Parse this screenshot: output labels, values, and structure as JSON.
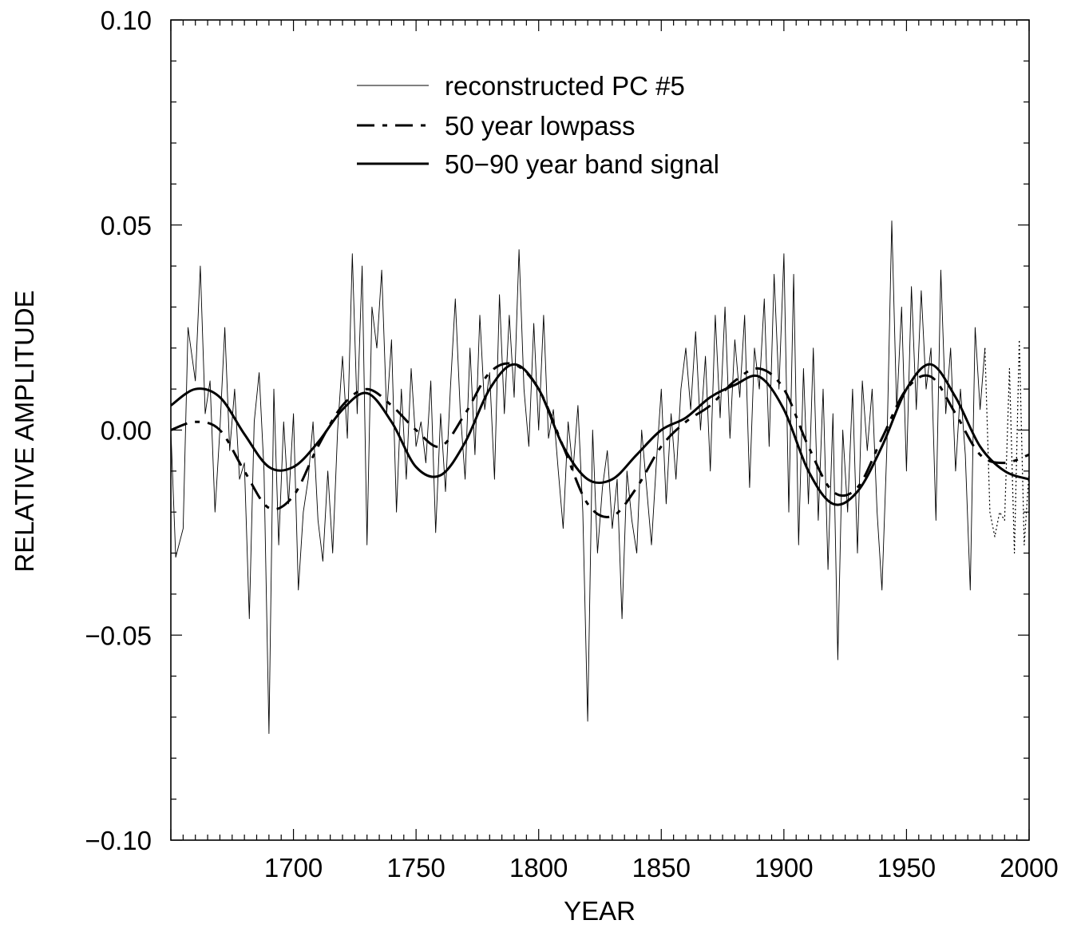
{
  "chart_data": {
    "type": "line",
    "xlabel": "YEAR",
    "ylabel": "RELATIVE AMPLITUDE",
    "xlim": [
      1650,
      2000
    ],
    "ylim": [
      -0.1,
      0.1
    ],
    "x_ticks": [
      1700,
      1750,
      1800,
      1850,
      1900,
      1950,
      2000
    ],
    "x_tick_labels": [
      "1700",
      "1750",
      "1800",
      "1850",
      "1900",
      "1950",
      "2000"
    ],
    "y_ticks": [
      0.1,
      0.05,
      0.0,
      -0.05,
      -0.1
    ],
    "y_tick_labels": [
      "0.10",
      "0.05",
      "0.00",
      "−0.05",
      "−0.10"
    ],
    "grid": false,
    "legend_position": "top-center",
    "legend": [
      {
        "label": "reconstructed PC #5",
        "style": "thin"
      },
      {
        "label": "50 year lowpass",
        "style": "dash-dot"
      },
      {
        "label": "50−90 year band signal",
        "style": "solid"
      }
    ],
    "series": [
      {
        "name": "reconstructed PC #5",
        "x": [
          1650,
          1652,
          1655,
          1657,
          1660,
          1662,
          1664,
          1666,
          1668,
          1670,
          1672,
          1674,
          1676,
          1678,
          1680,
          1682,
          1684,
          1686,
          1688,
          1690,
          1692,
          1694,
          1696,
          1698,
          1700,
          1702,
          1704,
          1706,
          1708,
          1710,
          1712,
          1714,
          1716,
          1718,
          1720,
          1722,
          1724,
          1726,
          1728,
          1730,
          1732,
          1734,
          1736,
          1738,
          1740,
          1742,
          1744,
          1746,
          1748,
          1750,
          1752,
          1754,
          1756,
          1758,
          1760,
          1762,
          1764,
          1766,
          1768,
          1770,
          1772,
          1774,
          1776,
          1778,
          1780,
          1782,
          1784,
          1786,
          1788,
          1790,
          1792,
          1794,
          1796,
          1798,
          1800,
          1802,
          1804,
          1806,
          1808,
          1810,
          1812,
          1814,
          1816,
          1818,
          1820,
          1822,
          1824,
          1826,
          1828,
          1830,
          1832,
          1834,
          1836,
          1838,
          1840,
          1842,
          1844,
          1846,
          1848,
          1850,
          1852,
          1854,
          1856,
          1858,
          1860,
          1862,
          1864,
          1866,
          1868,
          1870,
          1872,
          1874,
          1876,
          1878,
          1880,
          1882,
          1884,
          1886,
          1888,
          1890,
          1892,
          1894,
          1896,
          1898,
          1900,
          1902,
          1904,
          1906,
          1908,
          1910,
          1912,
          1914,
          1916,
          1918,
          1920,
          1922,
          1924,
          1926,
          1928,
          1930,
          1932,
          1934,
          1936,
          1938,
          1940,
          1942,
          1944,
          1946,
          1948,
          1950,
          1952,
          1954,
          1956,
          1958,
          1960,
          1962,
          1964,
          1966,
          1968,
          1970,
          1972,
          1974,
          1976,
          1978,
          1980,
          1982
        ],
        "y": [
          0.0,
          -0.031,
          -0.024,
          0.025,
          0.012,
          0.04,
          0.004,
          0.012,
          -0.02,
          0.0,
          0.025,
          -0.005,
          0.01,
          -0.012,
          -0.008,
          -0.046,
          0.002,
          0.014,
          -0.01,
          -0.074,
          0.01,
          -0.028,
          0.002,
          -0.018,
          0.004,
          -0.039,
          -0.02,
          -0.012,
          0.002,
          -0.022,
          -0.032,
          -0.01,
          -0.03,
          0.0,
          0.018,
          -0.002,
          0.043,
          0.004,
          0.04,
          -0.028,
          0.03,
          0.02,
          0.039,
          0.004,
          0.022,
          -0.02,
          0.01,
          -0.012,
          0.015,
          -0.004,
          0.002,
          -0.008,
          0.012,
          -0.025,
          0.004,
          -0.015,
          0.01,
          0.032,
          0.005,
          -0.012,
          0.02,
          -0.006,
          0.028,
          0.005,
          0.014,
          -0.012,
          0.033,
          0.004,
          0.028,
          0.008,
          0.044,
          0.01,
          -0.004,
          0.026,
          0.0,
          0.028,
          -0.002,
          0.005,
          -0.01,
          -0.024,
          0.002,
          -0.01,
          0.006,
          -0.02,
          -0.071,
          0.0,
          -0.03,
          -0.014,
          -0.005,
          -0.024,
          -0.012,
          -0.046,
          -0.01,
          -0.022,
          -0.03,
          0.0,
          -0.014,
          -0.028,
          -0.008,
          0.01,
          -0.018,
          0.004,
          -0.012,
          0.01,
          0.02,
          0.005,
          0.024,
          0.0,
          0.018,
          -0.01,
          0.028,
          0.003,
          0.03,
          -0.002,
          0.022,
          0.008,
          0.028,
          -0.014,
          0.02,
          0.01,
          0.032,
          -0.004,
          0.038,
          0.01,
          0.043,
          -0.02,
          0.038,
          -0.028,
          0.015,
          -0.018,
          0.02,
          -0.022,
          0.01,
          -0.034,
          0.004,
          -0.056,
          0.0,
          -0.02,
          0.01,
          -0.03,
          0.012,
          -0.005,
          0.01,
          -0.02,
          -0.039,
          -0.004,
          0.051,
          0.005,
          0.03,
          -0.01,
          0.035,
          0.005,
          0.034,
          0.01,
          0.02,
          -0.022,
          0.039,
          0.004,
          0.02,
          -0.01,
          0.01,
          -0.006,
          -0.039,
          0.025,
          0.005,
          0.02
        ]
      },
      {
        "name": "reconstructed PC #5 (extension)",
        "x": [
          1982,
          1984,
          1986,
          1988,
          1990,
          1992,
          1994,
          1996,
          1998,
          2000
        ],
        "y": [
          0.02,
          -0.02,
          -0.026,
          -0.02,
          -0.022,
          0.015,
          -0.03,
          0.022,
          -0.028,
          -0.01
        ]
      },
      {
        "name": "50 year lowpass",
        "x": [
          1650,
          1660,
          1670,
          1680,
          1690,
          1700,
          1710,
          1720,
          1730,
          1740,
          1750,
          1760,
          1770,
          1780,
          1790,
          1800,
          1810,
          1820,
          1830,
          1840,
          1850,
          1860,
          1870,
          1880,
          1890,
          1900,
          1910,
          1920,
          1930,
          1940,
          1950,
          1960,
          1970,
          1980,
          1990,
          2000
        ],
        "y": [
          0.0,
          0.002,
          0.0,
          -0.01,
          -0.019,
          -0.016,
          -0.004,
          0.006,
          0.01,
          0.006,
          0.0,
          -0.004,
          0.004,
          0.014,
          0.016,
          0.01,
          -0.004,
          -0.018,
          -0.021,
          -0.014,
          -0.004,
          0.002,
          0.006,
          0.012,
          0.015,
          0.01,
          -0.004,
          -0.015,
          -0.014,
          -0.002,
          0.01,
          0.013,
          0.004,
          -0.006,
          -0.008,
          -0.006
        ]
      },
      {
        "name": "50−90 year band signal",
        "x": [
          1650,
          1660,
          1670,
          1680,
          1690,
          1700,
          1710,
          1720,
          1730,
          1740,
          1750,
          1760,
          1770,
          1780,
          1790,
          1800,
          1810,
          1820,
          1830,
          1840,
          1850,
          1860,
          1870,
          1880,
          1890,
          1900,
          1910,
          1920,
          1930,
          1940,
          1950,
          1960,
          1970,
          1980,
          1990,
          2000
        ],
        "y": [
          0.006,
          0.01,
          0.008,
          -0.001,
          -0.009,
          -0.009,
          -0.003,
          0.005,
          0.009,
          0.002,
          -0.009,
          -0.011,
          -0.003,
          0.01,
          0.016,
          0.01,
          -0.004,
          -0.012,
          -0.012,
          -0.006,
          0.0,
          0.003,
          0.008,
          0.011,
          0.013,
          0.005,
          -0.01,
          -0.018,
          -0.015,
          -0.004,
          0.01,
          0.016,
          0.008,
          -0.004,
          -0.01,
          -0.012
        ]
      }
    ]
  }
}
